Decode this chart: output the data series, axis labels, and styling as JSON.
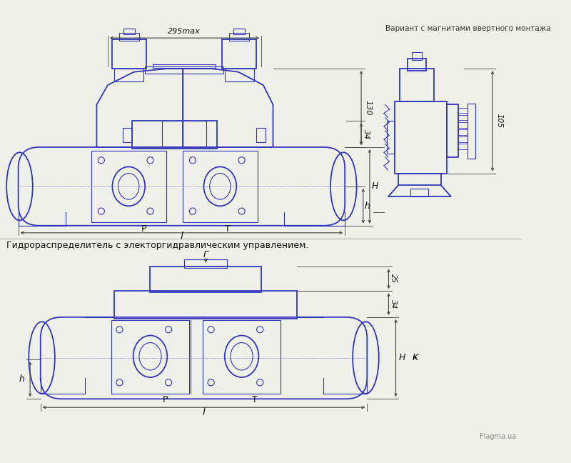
{
  "bg_color": "#f0f0eb",
  "line_color": "#3535bb",
  "dim_color": "#444444",
  "text_color": "#111111",
  "line_width": 1.3,
  "thin_lw": 0.8,
  "variant_text": "Вариант с магнитами ввертного монтажа",
  "bottom_text": "Гидрораспределитель с электоргидравлическим управлением.",
  "flagma_text": "Flagma.ua"
}
